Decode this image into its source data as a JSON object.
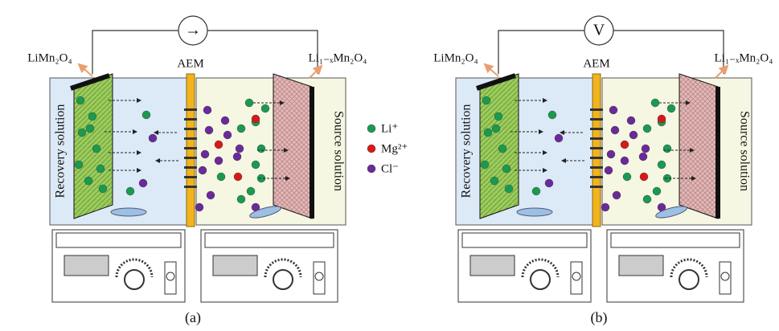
{
  "panels": [
    {
      "label": "(a)",
      "meter": "→",
      "left_electrode": "LiMn₂O₄",
      "membrane": "AEM",
      "right_electrode": "Li₁₋ₓMn₂O₄",
      "left_solution": "Recovery solution",
      "right_solution": "Source solution"
    },
    {
      "label": "(b)",
      "meter": "V",
      "left_electrode": "LiMn₂O₄",
      "membrane": "AEM",
      "right_electrode": "Li₁₋ₓMn₂O₄",
      "left_solution": "Recovery solution",
      "right_solution": "Source solution"
    }
  ],
  "legend": [
    {
      "label": "Li⁺"
    },
    {
      "label": "Mg²⁺"
    },
    {
      "label": "Cl⁻"
    }
  ]
}
